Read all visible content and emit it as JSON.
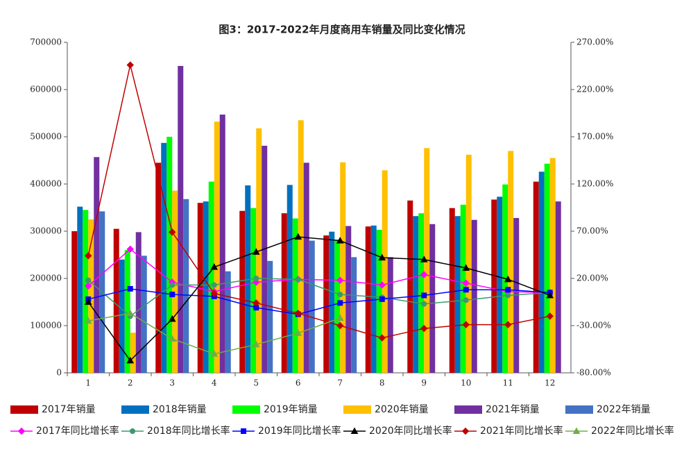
{
  "chart_data": {
    "type": "bar-line",
    "title": "图3：2017-2022年月度商用车销量及同比变化情况",
    "categories": [
      "1",
      "2",
      "3",
      "4",
      "5",
      "6",
      "7",
      "8",
      "9",
      "10",
      "11",
      "12"
    ],
    "ylim": [
      0,
      700000
    ],
    "yticks": [
      0,
      100000,
      200000,
      300000,
      400000,
      500000,
      600000,
      700000
    ],
    "y2lim": [
      -80,
      270
    ],
    "y2ticks": [
      {
        "value": -80,
        "label": "-80.00%"
      },
      {
        "value": -30,
        "label": "-30.00%"
      },
      {
        "value": 20,
        "label": "20.00%"
      },
      {
        "value": 70,
        "label": "70.00%"
      },
      {
        "value": 120,
        "label": "120.00%"
      },
      {
        "value": 170,
        "label": "170.00%"
      },
      {
        "value": 220,
        "label": "220.00%"
      },
      {
        "value": 270,
        "label": "270.00%"
      }
    ],
    "grid": false,
    "legend": "bottom",
    "series": [
      {
        "name": "2017年销量",
        "type": "bar",
        "color": "#c00000",
        "values": [
          300000,
          305000,
          445000,
          360000,
          343000,
          338000,
          291000,
          310000,
          365000,
          349000,
          367000,
          405000
        ]
      },
      {
        "name": "2018年销量",
        "type": "bar",
        "color": "#0070c0",
        "values": [
          352000,
          240000,
          487000,
          363000,
          397000,
          398000,
          299000,
          312000,
          332000,
          332000,
          373000,
          426000
        ]
      },
      {
        "name": "2019年销量",
        "type": "bar",
        "color": "#00ff00",
        "values": [
          345000,
          260000,
          500000,
          405000,
          349000,
          327000,
          282000,
          303000,
          338000,
          356000,
          399000,
          443000
        ]
      },
      {
        "name": "2020年销量",
        "type": "bar",
        "color": "#ffc000",
        "values": [
          325000,
          85000,
          386000,
          532000,
          518000,
          535000,
          446000,
          429000,
          476000,
          462000,
          470000,
          455000
        ]
      },
      {
        "name": "2021年销量",
        "type": "bar",
        "color": "#7030a0",
        "values": [
          457000,
          298000,
          650000,
          547000,
          481000,
          445000,
          311000,
          245000,
          315000,
          324000,
          328000,
          363000
        ]
      },
      {
        "name": "2022年销量",
        "type": "bar",
        "color": "#4472c4",
        "values": [
          342000,
          248000,
          368000,
          215000,
          237000,
          280000,
          245000,
          null,
          null,
          null,
          null,
          null
        ]
      },
      {
        "name": "2017年同比增长率",
        "type": "line",
        "axis": "y2",
        "marker": "diamond",
        "color": "#ff00ff",
        "values": [
          12,
          51,
          16,
          6,
          16,
          19,
          18,
          13,
          24,
          15,
          6,
          5
        ]
      },
      {
        "name": "2018年同比增长率",
        "type": "line",
        "axis": "y2",
        "marker": "circle",
        "color": "#3a9a6a",
        "values": [
          18,
          -20,
          13,
          13,
          20,
          19,
          3,
          0,
          -7,
          -3,
          2,
          5
        ]
      },
      {
        "name": "2019年同比增长率",
        "type": "line",
        "axis": "y2",
        "marker": "square",
        "color": "#0000ff",
        "values": [
          -2,
          9,
          3,
          1,
          -11,
          -18,
          -6,
          -2,
          2,
          8,
          8,
          5
        ]
      },
      {
        "name": "2020年同比增长率",
        "type": "line",
        "axis": "y2",
        "marker": "triangle",
        "color": "#000000",
        "values": [
          -5,
          -67,
          -23,
          32,
          48,
          64,
          60,
          42,
          40,
          31,
          19,
          2
        ]
      },
      {
        "name": "2021年同比增长率",
        "type": "line",
        "axis": "y2",
        "marker": "diamond",
        "color": "#c00000",
        "values": [
          44,
          246,
          69,
          4,
          -6,
          -17,
          -30,
          -43,
          -33,
          -29,
          -29,
          -20
        ]
      },
      {
        "name": "2022年同比增长率",
        "type": "line",
        "axis": "y2",
        "marker": "triangle",
        "color": "#70ad47",
        "values": [
          -25,
          -17,
          -44,
          -60,
          -50,
          -38,
          -22,
          null,
          null,
          null,
          null,
          null
        ]
      }
    ]
  }
}
